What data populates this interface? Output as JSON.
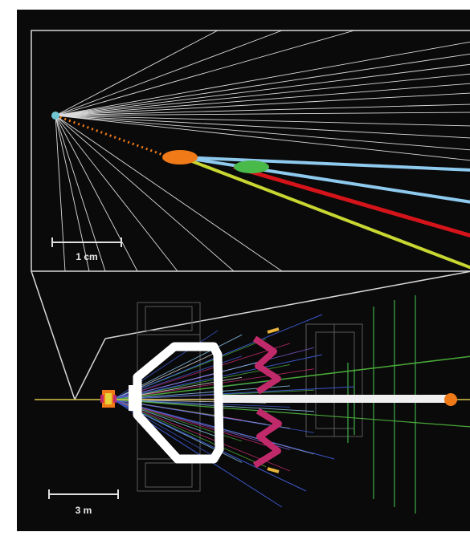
{
  "figure": {
    "background_color": "#0a0a0a",
    "inset_scale_label": "1 cm",
    "main_scale_label": "3 m"
  },
  "colors": {
    "track_white": "#e6e6e6",
    "track_light_blue": "#8ec9ee",
    "track_red": "#d4141a",
    "track_yellow_green": "#c8d632",
    "vertex_orange": "#f07a17",
    "vertex_green": "#49b94a",
    "muon_chamber_magenta": "#c12a6a",
    "calorimeter_green": "#3fae4a",
    "beamline_white": "#f0f0f0",
    "hadron_blue": "#3b57c9"
  }
}
